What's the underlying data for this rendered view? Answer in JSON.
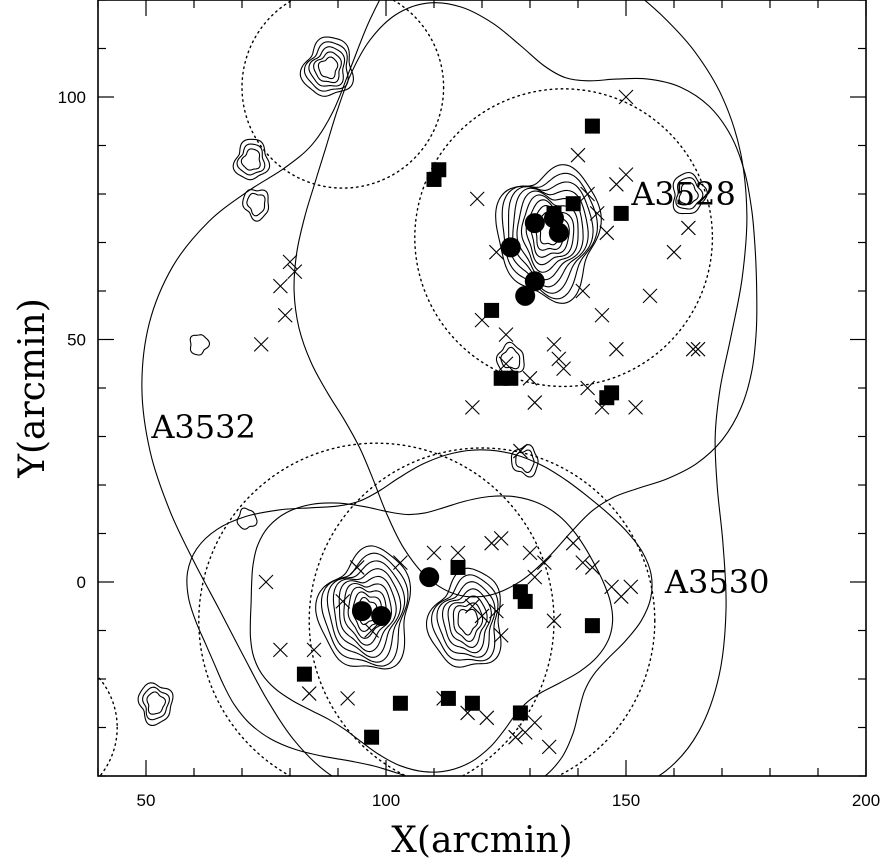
{
  "chart_data": {
    "type": "scatter",
    "title": "",
    "xlabel": "X(arcmin)",
    "ylabel": "Y(arcmin)",
    "xlim": [
      40,
      200
    ],
    "ylim": [
      -40,
      120
    ],
    "x_ticks": [
      50,
      100,
      150,
      200
    ],
    "y_ticks": [
      0,
      50,
      100
    ],
    "grid": false,
    "legend": "none",
    "annotations": [
      {
        "text": "A3528",
        "x": 162,
        "y": 80
      },
      {
        "text": "A3532",
        "x": 62,
        "y": 32
      },
      {
        "text": "A3530",
        "x": 169,
        "y": 0
      }
    ],
    "regions": [
      {
        "shape": "circle",
        "style": "dotted",
        "cx": 91,
        "cy": 102,
        "r": 21
      },
      {
        "shape": "circle",
        "style": "dotted",
        "cx": 137,
        "cy": 71,
        "r": 31
      },
      {
        "shape": "circle",
        "style": "dotted",
        "cx": 98,
        "cy": -8,
        "r": 37
      },
      {
        "shape": "circle",
        "style": "dotted",
        "cx": 120,
        "cy": -8,
        "r": 36
      },
      {
        "shape": "circle",
        "style": "dotted",
        "cx": 28,
        "cy": -30,
        "r": 16
      }
    ],
    "contour_peaks": [
      {
        "cx": 134,
        "cy": 72,
        "levels": 10
      },
      {
        "cx": 96,
        "cy": -6,
        "levels": 9
      },
      {
        "cx": 117,
        "cy": -8,
        "levels": 7
      },
      {
        "cx": 88,
        "cy": 106,
        "levels": 5
      },
      {
        "cx": 72,
        "cy": 87,
        "levels": 3
      },
      {
        "cx": 163,
        "cy": 80,
        "levels": 3
      },
      {
        "cx": 52,
        "cy": -25,
        "levels": 3
      },
      {
        "cx": 73,
        "cy": 78,
        "levels": 2
      },
      {
        "cx": 129,
        "cy": 25,
        "levels": 2
      },
      {
        "cx": 126,
        "cy": 46,
        "levels": 2
      },
      {
        "cx": 71,
        "cy": 13,
        "levels": 1
      },
      {
        "cx": 61,
        "cy": 49,
        "levels": 1
      }
    ],
    "series": [
      {
        "marker": "filled-circle",
        "x": [
          131,
          135,
          136,
          126,
          131,
          129,
          95,
          99,
          109
        ],
        "y": [
          74,
          75,
          72,
          69,
          62,
          59,
          -6,
          -7,
          1
        ]
      },
      {
        "marker": "filled-square",
        "x": [
          143,
          111,
          110,
          139,
          135,
          149,
          122,
          124,
          126,
          146,
          147,
          115,
          128,
          129,
          143,
          83,
          103,
          113,
          118,
          128,
          97
        ],
        "y": [
          94,
          85,
          83,
          78,
          76,
          76,
          56,
          42,
          42,
          38,
          39,
          3,
          -2,
          -4,
          -9,
          -19,
          -25,
          -24,
          -25,
          -27,
          -32
        ]
      },
      {
        "marker": "cross",
        "x": [
          150,
          140,
          148,
          150,
          142,
          144,
          146,
          163,
          160,
          155,
          141,
          119,
          123,
          80,
          81,
          78,
          79,
          120,
          125,
          145,
          135,
          136,
          74,
          125,
          137,
          130,
          148,
          142,
          131,
          118,
          145,
          152,
          164,
          165,
          128,
          124,
          122,
          130,
          133,
          139,
          141,
          143,
          135,
          151,
          149,
          131,
          147,
          120,
          123,
          124,
          118,
          110,
          115,
          103,
          94,
          91,
          97,
          85,
          75,
          78,
          92,
          84,
          112,
          117,
          121,
          127,
          129,
          131,
          134
        ],
        "y": [
          100,
          88,
          82,
          84,
          80,
          76,
          72,
          73,
          68,
          59,
          60,
          79,
          68,
          66,
          64,
          61,
          55,
          54,
          51,
          55,
          49,
          46,
          49,
          45,
          44,
          42,
          48,
          40,
          37,
          36,
          36,
          36,
          48,
          48,
          27,
          9,
          8,
          6,
          4,
          8,
          4,
          3,
          -8,
          -1,
          -3,
          1,
          -1,
          -7,
          -6,
          -11,
          -5,
          6,
          6,
          4,
          3,
          -4,
          -10,
          -14,
          0,
          -14,
          -24,
          -23,
          -24,
          -27,
          -28,
          -32,
          -31,
          -29,
          -34
        ]
      }
    ]
  }
}
